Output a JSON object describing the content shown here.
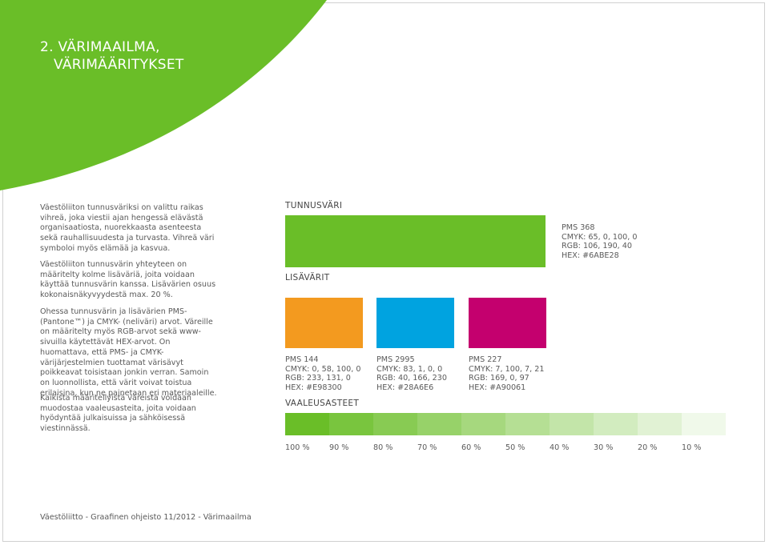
{
  "title": {
    "line1": "2. VÄRIMAAILMA,",
    "line2": "VÄRIMÄÄRITYKSET"
  },
  "intro": {
    "p1": "Väestöliiton tunnusväriksi on valittu raikas vihreä, joka viestii ajan hengessä elävästä organisaatiosta, nuorekkaasta asenteesta sekä rauhallisuudesta ja turvasta. Vihreä väri symboloi myös elämää ja kasvua.",
    "p2": "Väestöliiton tunnusvärin yhteyteen on määritelty kolme lisäväriä, joita voidaan käyttää tunnusvärin kanssa. Lisävärien osuus kokonaisnäkyvyydestä max. 20 %.",
    "p3": "Ohessa tunnusvärin ja lisävärien PMS- (Pantone™) ja CMYK- (neliväri) arvot. Väreille on määritelty myös RGB-arvot sekä www-sivuilla käytettävät HEX-arvot. On huomattava, että PMS- ja CMYK-värijärjestelmien tuottamat värisävyt poikkeavat toisistaan jonkin verran. Samoin on luonnollista, että värit voivat toistua erilaisina, kun ne painetaan eri materiaaleille.",
    "p4": "Kaikista määritellyistä väreistä voidaan muodostaa vaaleusasteita, joita voidaan hyödyntää julkaisuissa ja sähköisessä viestinnässä."
  },
  "primary": {
    "label": "TUNNUSVÄRI",
    "color": "#6ABE28",
    "pms": "PMS 368",
    "cmyk": "CMYK: 65, 0, 100, 0",
    "rgb": "RGB: 106, 190, 40",
    "hex": "HEX: #6ABE28"
  },
  "secondary": {
    "label": "LISÄVÄRIT",
    "colors": [
      {
        "color": "#E98300",
        "pms": "PMS 144",
        "cmyk": "CMYK: 0, 58, 100, 0",
        "rgb": "RGB: 233, 131, 0",
        "hex": "HEX: #E98300"
      },
      {
        "color": "#28A6E6",
        "pms": "PMS 2995",
        "cmyk": "CMYK: 83, 1, 0, 0",
        "rgb": "RGB: 40, 166, 230",
        "hex": "HEX: #28A6E6"
      },
      {
        "color": "#A90061",
        "pms": "PMS 227",
        "cmyk": "CMYK: 7, 100, 7, 21",
        "rgb": "RGB: 169, 0, 97",
        "hex": "HEX: #A90061"
      }
    ]
  },
  "tints": {
    "label": "VAALEUSASTEET",
    "levels": [
      {
        "label": "100 %",
        "value": 100
      },
      {
        "label": "90 %",
        "value": 90
      },
      {
        "label": "80 %",
        "value": 80
      },
      {
        "label": "70 %",
        "value": 70
      },
      {
        "label": "60 %",
        "value": 60
      },
      {
        "label": "50 %",
        "value": 50
      },
      {
        "label": "40 %",
        "value": 40
      },
      {
        "label": "30 %",
        "value": 30
      },
      {
        "label": "20 %",
        "value": 20
      },
      {
        "label": "10 %",
        "value": 10
      }
    ]
  },
  "footer": "Väestöliitto - Graafinen ohjeisto 11/2012 - Värimaailma"
}
